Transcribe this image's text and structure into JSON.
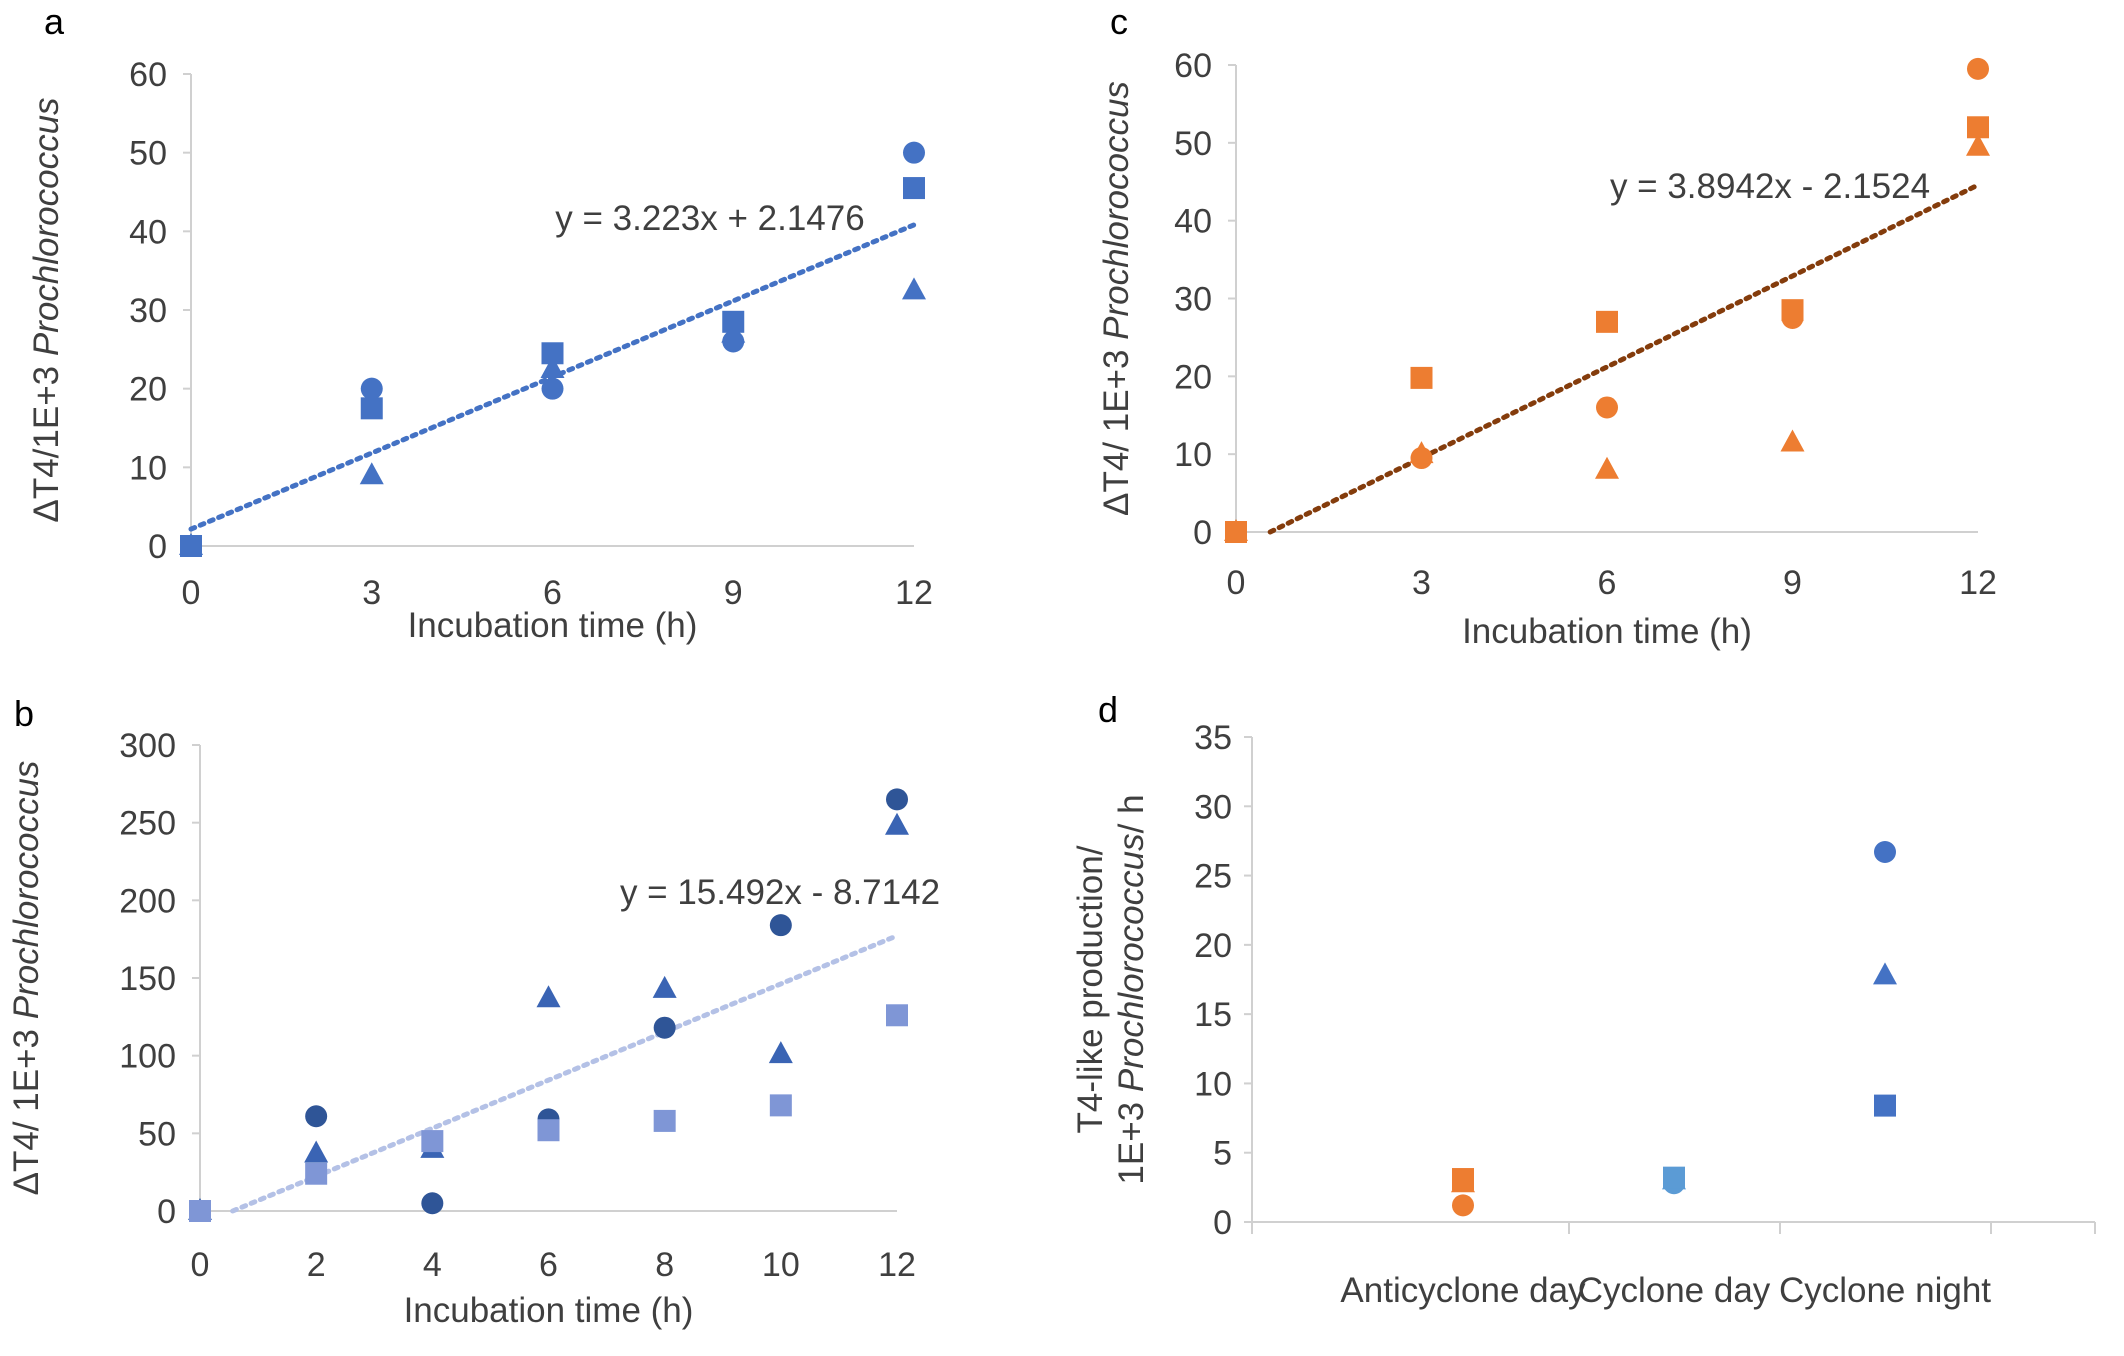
{
  "chart_data": [
    {
      "panel": "a",
      "type": "scatter",
      "xlabel": "Incubation time (h)",
      "ylabel_prefix": "ΔT4/1E+3 ",
      "ylabel_italic": "Prochlorococcus",
      "x_ticks": [
        0,
        3,
        6,
        9,
        12
      ],
      "y_ticks": [
        0,
        10,
        20,
        30,
        40,
        50,
        60
      ],
      "xlim": [
        0,
        12
      ],
      "ylim": [
        0,
        60
      ],
      "color": "#4472c4",
      "series": [
        {
          "name": "circle",
          "marker": "circle",
          "x": [
            0,
            3,
            6,
            9,
            12
          ],
          "y": [
            0,
            20,
            20,
            26,
            50
          ]
        },
        {
          "name": "square",
          "marker": "square",
          "x": [
            0,
            3,
            6,
            9,
            12
          ],
          "y": [
            0,
            17.5,
            24.5,
            28.5,
            45.5
          ]
        },
        {
          "name": "triangle",
          "marker": "triangle",
          "x": [
            0,
            3,
            6,
            9,
            12
          ],
          "y": [
            0,
            9,
            22.5,
            27,
            32.5
          ]
        }
      ],
      "trendline": {
        "slope": 3.223,
        "intercept": 2.1476,
        "color": "#4472c4",
        "label": "y = 3.223x + 2.1476"
      }
    },
    {
      "panel": "b",
      "type": "scatter",
      "xlabel": "Incubation time (h)",
      "ylabel_prefix": "ΔT4/ 1E+3 ",
      "ylabel_italic": "Prochlorococcus",
      "x_ticks": [
        0,
        2,
        4,
        6,
        8,
        10,
        12
      ],
      "y_ticks": [
        0,
        50,
        100,
        150,
        200,
        250,
        300
      ],
      "xlim": [
        0,
        12
      ],
      "ylim": [
        0,
        300
      ],
      "series": [
        {
          "name": "circle",
          "marker": "circle",
          "color": "#2f5597",
          "x": [
            0,
            2,
            4,
            6,
            8,
            10,
            12
          ],
          "y": [
            0,
            61,
            5,
            59,
            118,
            184,
            265
          ]
        },
        {
          "name": "triangle",
          "marker": "triangle",
          "color": "#3a64b4",
          "x": [
            0,
            2,
            4,
            6,
            8,
            10,
            12
          ],
          "y": [
            0,
            37,
            40,
            137,
            143,
            101,
            248
          ]
        },
        {
          "name": "square",
          "marker": "square",
          "color": "#7f96d6",
          "x": [
            0,
            2,
            4,
            6,
            8,
            10,
            12
          ],
          "y": [
            0,
            24,
            45,
            52,
            58,
            68,
            126
          ]
        }
      ],
      "trendline": {
        "slope": 15.492,
        "intercept": -8.7142,
        "color": "#b4c1e6",
        "label": "y = 15.492x - 8.7142"
      }
    },
    {
      "panel": "c",
      "type": "scatter",
      "xlabel": "Incubation time (h)",
      "ylabel_prefix": "ΔT4/ 1E+3 ",
      "ylabel_italic": "Prochlorococcus",
      "x_ticks": [
        0,
        3,
        6,
        9,
        12
      ],
      "y_ticks": [
        0,
        10,
        20,
        30,
        40,
        50,
        60
      ],
      "xlim": [
        0,
        12
      ],
      "ylim": [
        0,
        60
      ],
      "color": "#ed7d31",
      "series": [
        {
          "name": "circle",
          "marker": "circle",
          "x": [
            0,
            3,
            6,
            9,
            12
          ],
          "y": [
            0,
            9.5,
            16,
            27.5,
            59.5
          ]
        },
        {
          "name": "square",
          "marker": "square",
          "x": [
            0,
            3,
            6,
            9,
            12
          ],
          "y": [
            0,
            19.8,
            27,
            28.5,
            52
          ]
        },
        {
          "name": "triangle",
          "marker": "triangle",
          "x": [
            0,
            3,
            6,
            9,
            12
          ],
          "y": [
            0,
            10,
            8,
            11.5,
            49.5
          ]
        }
      ],
      "trendline": {
        "slope": 3.8942,
        "intercept": -2.1524,
        "color": "#843c0c",
        "label": "y = 3.8942x - 2.1524"
      }
    },
    {
      "panel": "d",
      "type": "scatter",
      "ylabel_line1": "T4-like production/",
      "ylabel_line2_prefix": "1E+3 ",
      "ylabel_line2_italic": "Prochlorococcus",
      "ylabel_line2_suffix": "/ h",
      "categories": [
        "Anticyclone day",
        "Cyclone day",
        "Cyclone night"
      ],
      "y_ticks": [
        0,
        5,
        10,
        15,
        20,
        25,
        30,
        35
      ],
      "ylim": [
        0,
        35
      ],
      "points": [
        {
          "category": 0,
          "marker": "circle",
          "color": "#ed7d31",
          "y": 1.2
        },
        {
          "category": 0,
          "marker": "triangle",
          "color": "#ed7d31",
          "y": 2.8
        },
        {
          "category": 0,
          "marker": "square",
          "color": "#ed7d31",
          "y": 3.1
        },
        {
          "category": 1,
          "marker": "circle",
          "color": "#5b9bd5",
          "y": 2.8
        },
        {
          "category": 1,
          "marker": "triangle",
          "color": "#5b9bd5",
          "y": 3.0
        },
        {
          "category": 1,
          "marker": "square",
          "color": "#5b9bd5",
          "y": 3.2
        },
        {
          "category": 2,
          "marker": "circle",
          "color": "#4472c4",
          "y": 26.7
        },
        {
          "category": 2,
          "marker": "triangle",
          "color": "#4472c4",
          "y": 17.8
        },
        {
          "category": 2,
          "marker": "square",
          "color": "#4472c4",
          "y": 8.4
        }
      ]
    }
  ],
  "panel_letters": [
    "a",
    "b",
    "c",
    "d"
  ]
}
